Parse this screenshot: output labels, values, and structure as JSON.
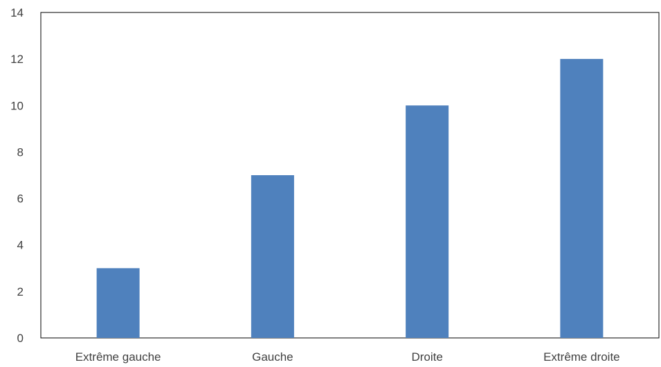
{
  "chart_data": {
    "type": "bar",
    "title": "",
    "xlabel": "",
    "ylabel": "",
    "categories": [
      "Extrême gauche",
      "Gauche",
      "Droite",
      "Extrême droite"
    ],
    "values": [
      3,
      7,
      10,
      12
    ],
    "ylim": [
      0,
      14
    ],
    "yticks": [
      0,
      2,
      4,
      6,
      8,
      10,
      12,
      14
    ],
    "grid": false,
    "legend": "none",
    "bar_color": "#4f81bd",
    "axis_color": "#000000"
  }
}
